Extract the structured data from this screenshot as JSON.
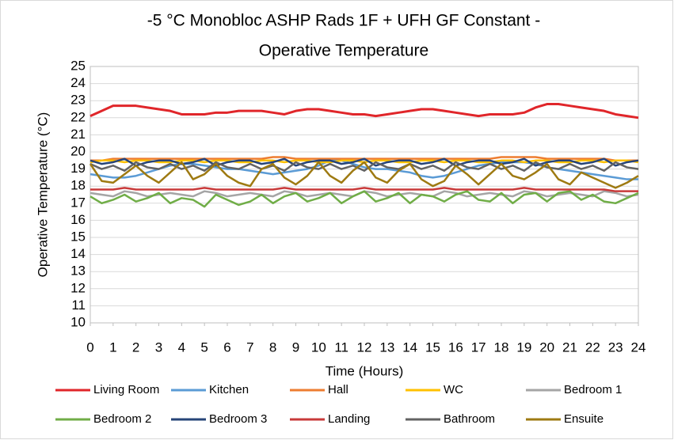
{
  "chart_data": {
    "type": "line",
    "title": [
      "-5 °C Monobloc ASHP  Rads 1F  + UFH GF Constant -",
      "Operative Temperature"
    ],
    "x_label": "Time (Hours)",
    "y_label": "Operative Temperature (°C)",
    "x": [
      0,
      0.5,
      1,
      1.5,
      2,
      2.5,
      3,
      3.5,
      4,
      4.5,
      5,
      5.5,
      6,
      6.5,
      7,
      7.5,
      8,
      8.5,
      9,
      9.5,
      10,
      10.5,
      11,
      11.5,
      12,
      12.5,
      13,
      13.5,
      14,
      14.5,
      15,
      15.5,
      16,
      16.5,
      17,
      17.5,
      18,
      18.5,
      19,
      19.5,
      20,
      20.5,
      21,
      21.5,
      22,
      22.5,
      23,
      23.5,
      24
    ],
    "xlim": [
      0,
      24
    ],
    "xticks": [
      0,
      1,
      2,
      3,
      4,
      5,
      6,
      7,
      8,
      9,
      10,
      11,
      12,
      13,
      14,
      15,
      16,
      17,
      18,
      19,
      20,
      21,
      22,
      23,
      24
    ],
    "ylim": [
      10,
      25
    ],
    "yticks": [
      10,
      11,
      12,
      13,
      14,
      15,
      16,
      17,
      18,
      19,
      20,
      21,
      22,
      23,
      24,
      25
    ],
    "grid": true,
    "legend": "bottom",
    "series": [
      {
        "name": "Living Room",
        "color": "#e0262a",
        "values": [
          22.1,
          22.4,
          22.7,
          22.7,
          22.7,
          22.6,
          22.5,
          22.4,
          22.2,
          22.2,
          22.2,
          22.3,
          22.3,
          22.4,
          22.4,
          22.4,
          22.3,
          22.2,
          22.4,
          22.5,
          22.5,
          22.4,
          22.3,
          22.2,
          22.2,
          22.1,
          22.2,
          22.3,
          22.4,
          22.5,
          22.5,
          22.4,
          22.3,
          22.2,
          22.1,
          22.2,
          22.2,
          22.2,
          22.3,
          22.6,
          22.8,
          22.8,
          22.7,
          22.6,
          22.5,
          22.4,
          22.2,
          22.1,
          22.0
        ]
      },
      {
        "name": "Kitchen",
        "color": "#5b9bd5",
        "values": [
          18.7,
          18.6,
          18.5,
          18.5,
          18.6,
          18.8,
          19.0,
          19.2,
          19.3,
          19.3,
          19.2,
          19.1,
          19.0,
          19.0,
          18.9,
          18.8,
          18.7,
          18.8,
          18.9,
          19.0,
          19.2,
          19.5,
          19.5,
          19.3,
          19.1,
          19.0,
          19.0,
          18.9,
          18.8,
          18.6,
          18.5,
          18.6,
          18.8,
          19.0,
          19.2,
          19.3,
          19.4,
          19.4,
          19.4,
          19.3,
          19.1,
          19.0,
          18.9,
          18.8,
          18.7,
          18.6,
          18.5,
          18.4,
          18.4
        ]
      },
      {
        "name": "Hall",
        "color": "#ed7d31",
        "values": [
          19.5,
          19.5,
          19.6,
          19.6,
          19.6,
          19.6,
          19.6,
          19.6,
          19.6,
          19.6,
          19.6,
          19.6,
          19.6,
          19.6,
          19.6,
          19.6,
          19.7,
          19.7,
          19.6,
          19.6,
          19.6,
          19.6,
          19.6,
          19.6,
          19.6,
          19.6,
          19.6,
          19.6,
          19.6,
          19.6,
          19.6,
          19.6,
          19.6,
          19.6,
          19.6,
          19.6,
          19.7,
          19.7,
          19.7,
          19.7,
          19.6,
          19.6,
          19.6,
          19.6,
          19.6,
          19.6,
          19.5,
          19.5,
          19.5
        ]
      },
      {
        "name": "WC",
        "color": "#ffc000",
        "values": [
          19.4,
          19.5,
          19.5,
          19.4,
          19.5,
          19.5,
          19.4,
          19.4,
          19.5,
          19.5,
          19.4,
          19.5,
          19.5,
          19.4,
          19.4,
          19.5,
          19.5,
          19.4,
          19.5,
          19.5,
          19.4,
          19.4,
          19.5,
          19.5,
          19.4,
          19.5,
          19.5,
          19.4,
          19.4,
          19.5,
          19.5,
          19.4,
          19.5,
          19.5,
          19.4,
          19.4,
          19.5,
          19.5,
          19.4,
          19.5,
          19.5,
          19.4,
          19.4,
          19.5,
          19.5,
          19.4,
          19.5,
          19.5,
          19.4
        ]
      },
      {
        "name": "Bedroom 1",
        "color": "#a5a5a5",
        "values": [
          17.6,
          17.5,
          17.4,
          17.7,
          17.6,
          17.4,
          17.5,
          17.6,
          17.5,
          17.4,
          17.7,
          17.6,
          17.4,
          17.5,
          17.6,
          17.5,
          17.4,
          17.7,
          17.6,
          17.4,
          17.5,
          17.6,
          17.5,
          17.4,
          17.7,
          17.6,
          17.4,
          17.5,
          17.6,
          17.5,
          17.4,
          17.7,
          17.6,
          17.4,
          17.5,
          17.6,
          17.5,
          17.4,
          17.7,
          17.6,
          17.4,
          17.5,
          17.6,
          17.5,
          17.4,
          17.7,
          17.6,
          17.4,
          17.5
        ]
      },
      {
        "name": "Bedroom 2",
        "color": "#70ad47",
        "values": [
          17.4,
          17.0,
          17.2,
          17.5,
          17.1,
          17.3,
          17.6,
          17.0,
          17.3,
          17.2,
          16.8,
          17.5,
          17.2,
          16.9,
          17.1,
          17.5,
          17.0,
          17.4,
          17.6,
          17.1,
          17.3,
          17.6,
          17.0,
          17.4,
          17.7,
          17.1,
          17.3,
          17.6,
          17.0,
          17.5,
          17.4,
          17.1,
          17.5,
          17.7,
          17.2,
          17.1,
          17.6,
          17.0,
          17.5,
          17.6,
          17.1,
          17.6,
          17.7,
          17.2,
          17.5,
          17.1,
          17.0,
          17.3,
          17.6
        ]
      },
      {
        "name": "Bedroom 3",
        "color": "#264478",
        "values": [
          19.5,
          19.3,
          19.4,
          19.6,
          19.2,
          19.4,
          19.5,
          19.5,
          19.3,
          19.4,
          19.6,
          19.2,
          19.4,
          19.5,
          19.5,
          19.3,
          19.4,
          19.6,
          19.2,
          19.4,
          19.5,
          19.5,
          19.3,
          19.4,
          19.6,
          19.2,
          19.4,
          19.5,
          19.5,
          19.3,
          19.4,
          19.6,
          19.2,
          19.4,
          19.5,
          19.5,
          19.3,
          19.4,
          19.6,
          19.2,
          19.4,
          19.5,
          19.5,
          19.3,
          19.4,
          19.6,
          19.2,
          19.4,
          19.5
        ]
      },
      {
        "name": "Landing",
        "color": "#c83a3a",
        "values": [
          17.8,
          17.8,
          17.8,
          17.9,
          17.8,
          17.8,
          17.8,
          17.8,
          17.8,
          17.8,
          17.9,
          17.8,
          17.8,
          17.8,
          17.8,
          17.8,
          17.8,
          17.9,
          17.8,
          17.8,
          17.8,
          17.8,
          17.8,
          17.8,
          17.9,
          17.8,
          17.8,
          17.8,
          17.8,
          17.8,
          17.8,
          17.9,
          17.8,
          17.8,
          17.8,
          17.8,
          17.8,
          17.8,
          17.9,
          17.8,
          17.8,
          17.8,
          17.8,
          17.8,
          17.8,
          17.8,
          17.7,
          17.7,
          17.7
        ]
      },
      {
        "name": "Bathroom",
        "color": "#636363",
        "values": [
          19.3,
          19.0,
          19.2,
          18.9,
          19.4,
          19.1,
          19.0,
          19.3,
          19.0,
          19.2,
          18.9,
          19.4,
          19.1,
          19.0,
          19.3,
          19.0,
          19.2,
          18.9,
          19.4,
          19.1,
          19.0,
          19.3,
          19.0,
          19.2,
          18.9,
          19.4,
          19.1,
          19.0,
          19.3,
          19.0,
          19.2,
          18.9,
          19.4,
          19.1,
          19.0,
          19.3,
          19.0,
          19.2,
          18.9,
          19.4,
          19.1,
          19.0,
          19.3,
          19.0,
          19.2,
          18.9,
          19.4,
          19.1,
          19.0
        ]
      },
      {
        "name": "Ensuite",
        "color": "#9e7a12",
        "values": [
          19.3,
          18.3,
          18.2,
          18.7,
          19.2,
          18.6,
          18.2,
          18.8,
          19.4,
          18.4,
          18.7,
          19.3,
          18.6,
          18.2,
          18.0,
          19.0,
          19.3,
          18.5,
          18.1,
          18.6,
          19.4,
          18.6,
          18.2,
          18.9,
          19.4,
          18.5,
          18.2,
          18.9,
          19.3,
          18.4,
          18.0,
          18.3,
          19.2,
          18.7,
          18.1,
          18.7,
          19.3,
          18.6,
          18.4,
          18.8,
          19.3,
          18.4,
          18.1,
          18.8,
          18.5,
          18.2,
          17.9,
          18.2,
          18.6
        ]
      }
    ]
  }
}
